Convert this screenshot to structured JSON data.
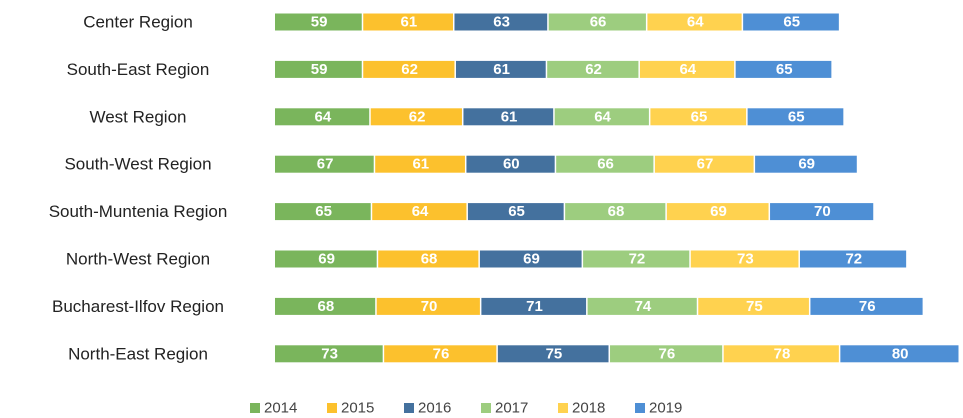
{
  "chart_data": {
    "type": "stacked-bar-horizontal",
    "categories": [
      "Center Region",
      "South-East Region",
      "West Region",
      "South-West Region",
      "South-Muntenia Region",
      "North-West Region",
      "Bucharest-Ilfov Region",
      "North-East Region"
    ],
    "series": [
      {
        "name": "2014",
        "color": "#7ab55c",
        "values": [
          59,
          59,
          64,
          67,
          65,
          69,
          68,
          73
        ]
      },
      {
        "name": "2015",
        "color": "#fcc12d",
        "values": [
          61,
          62,
          62,
          61,
          64,
          68,
          70,
          76
        ]
      },
      {
        "name": "2016",
        "color": "#44719e",
        "values": [
          63,
          61,
          61,
          60,
          65,
          69,
          71,
          75
        ]
      },
      {
        "name": "2017",
        "color": "#9dcd7f",
        "values": [
          66,
          62,
          64,
          66,
          68,
          72,
          74,
          76
        ]
      },
      {
        "name": "2018",
        "color": "#ffd24f",
        "values": [
          64,
          64,
          65,
          67,
          69,
          73,
          75,
          78
        ]
      },
      {
        "name": "2019",
        "color": "#4e8fd5",
        "values": [
          65,
          65,
          65,
          69,
          70,
          72,
          76,
          80
        ]
      }
    ]
  }
}
